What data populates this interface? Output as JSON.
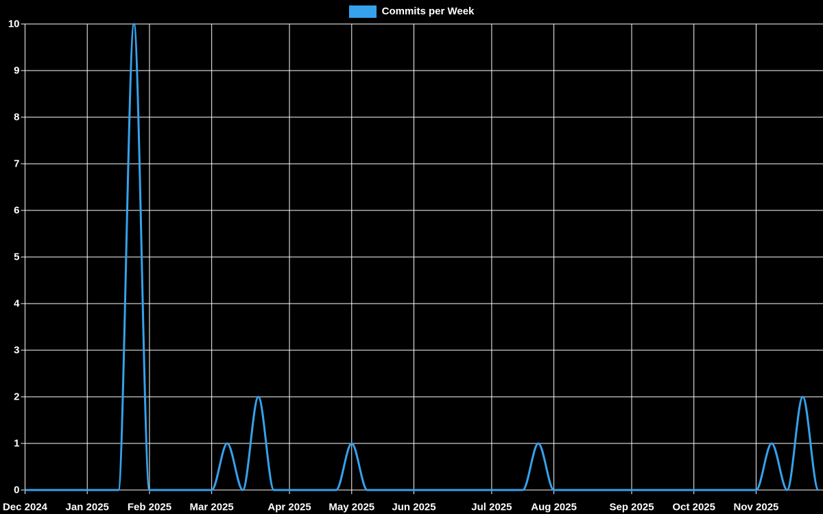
{
  "legend": {
    "label": "Commits per Week",
    "swatch_color": "#36a2eb"
  },
  "theme": {
    "background": "#000000",
    "grid_color": "#ffffff",
    "axis_color": "#ffffff",
    "text_color": "#ffffff",
    "line_color": "#36a2eb"
  },
  "chart_data": {
    "type": "line",
    "title": "Commits per Week",
    "legend_position": "top",
    "grid": true,
    "xlabel": "",
    "ylabel": "",
    "ylim": [
      0,
      10
    ],
    "y_ticks": [
      0,
      1,
      2,
      3,
      4,
      5,
      6,
      7,
      8,
      9,
      10
    ],
    "x_tick_labels": [
      "Dec 2024",
      "Jan 2025",
      "Feb 2025",
      "Mar 2025",
      "Apr 2025",
      "May 2025",
      "Jun 2025",
      "Jul 2025",
      "Aug 2025",
      "Sep 2025",
      "Oct 2025",
      "Nov 2025"
    ],
    "x_tick_week_indices": [
      0,
      4,
      8,
      12,
      17,
      21,
      25,
      30,
      34,
      39,
      43,
      47
    ],
    "x_unit": "week",
    "weeks_total": 52,
    "series": [
      {
        "name": "Commits per Week",
        "values": [
          0,
          0,
          0,
          0,
          0,
          0,
          0,
          10,
          0,
          0,
          0,
          0,
          0,
          1,
          0,
          2,
          0,
          0,
          0,
          0,
          0,
          1,
          0,
          0,
          0,
          0,
          0,
          0,
          0,
          0,
          0,
          0,
          0,
          1,
          0,
          0,
          0,
          0,
          0,
          0,
          0,
          0,
          0,
          0,
          0,
          0,
          0,
          0,
          1,
          0,
          2,
          0
        ]
      }
    ]
  }
}
